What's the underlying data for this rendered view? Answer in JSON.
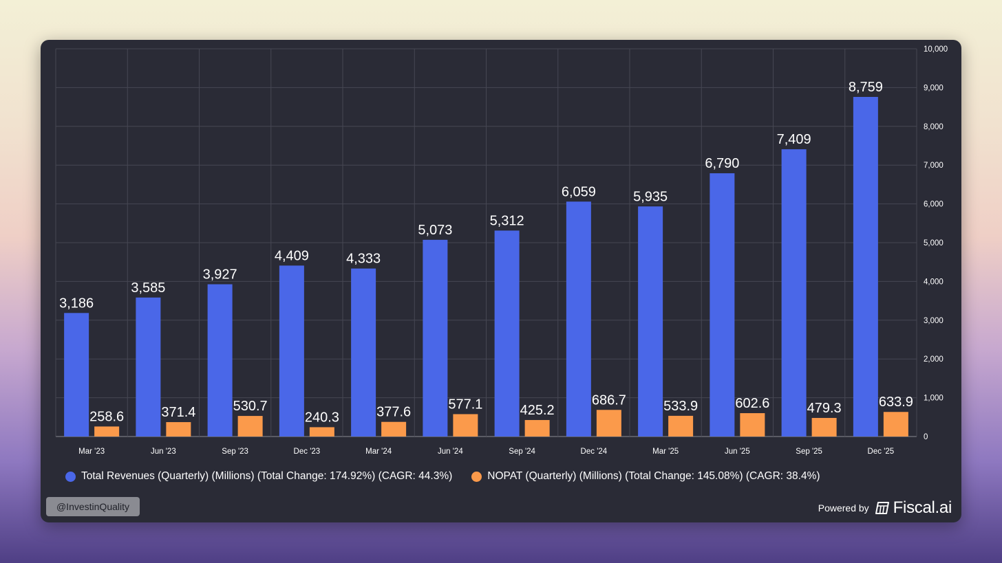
{
  "chart_data": {
    "type": "bar",
    "categories": [
      "Mar '23",
      "Jun '23",
      "Sep '23",
      "Dec '23",
      "Mar '24",
      "Jun '24",
      "Sep '24",
      "Dec '24",
      "Mar '25",
      "Jun '25",
      "Sep '25",
      "Dec '25"
    ],
    "series": [
      {
        "name": "Total Revenues (Quarterly) (Millions) (Total Change: 174.92%) (CAGR: 44.3%)",
        "color": "#4a67e8",
        "values": [
          3186,
          3585,
          3927,
          4409,
          4333,
          5073,
          5312,
          6059,
          5935,
          6790,
          7409,
          8759
        ],
        "labels": [
          "3,186",
          "3,585",
          "3,927",
          "4,409",
          "4,333",
          "5,073",
          "5,312",
          "6,059",
          "5,935",
          "6,790",
          "7,409",
          "8,759"
        ]
      },
      {
        "name": "NOPAT (Quarterly) (Millions) (Total Change: 145.08%) (CAGR: 38.4%)",
        "color": "#fb9a4b",
        "values": [
          258.6,
          371.4,
          530.7,
          240.3,
          377.6,
          577.1,
          425.2,
          686.7,
          533.9,
          602.6,
          479.3,
          633.9
        ],
        "labels": [
          "258.6",
          "371.4",
          "530.7",
          "240.3",
          "377.6",
          "577.1",
          "425.2",
          "686.7",
          "533.9",
          "602.6",
          "479.3",
          "633.9"
        ]
      }
    ],
    "ylim": [
      0,
      10000
    ],
    "yticks": [
      0,
      1000,
      2000,
      3000,
      4000,
      5000,
      6000,
      7000,
      8000,
      9000,
      10000
    ],
    "ytick_labels": [
      "0",
      "1,000",
      "2,000",
      "3,000",
      "4,000",
      "5,000",
      "6,000",
      "7,000",
      "8,000",
      "9,000",
      "10,000"
    ],
    "y_axis_position": "right",
    "grid": true,
    "legend_position": "bottom-left"
  },
  "watermark": {
    "handle": "@InvestinQuality",
    "powered_by": "Powered by",
    "brand": "Fiscal.ai"
  },
  "colors": {
    "background": "#2a2b36",
    "grid": "#4a4b56",
    "text": "#ffffff"
  }
}
